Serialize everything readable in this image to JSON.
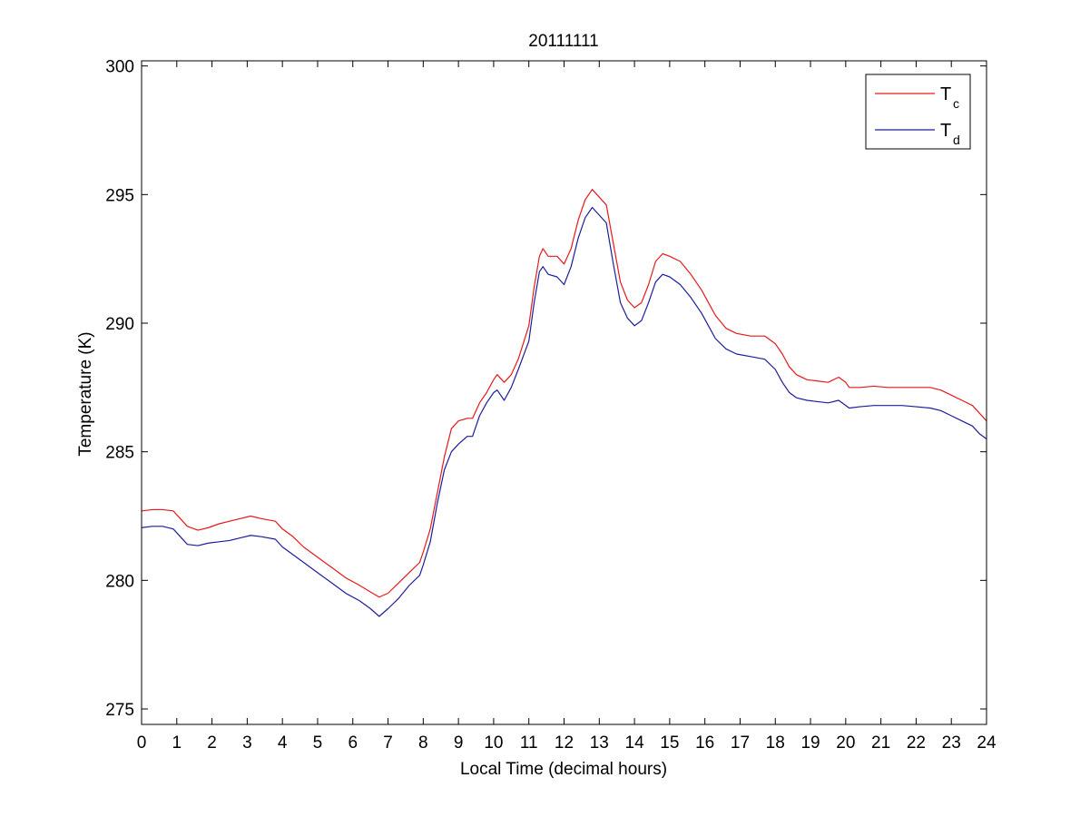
{
  "chart_data": {
    "type": "line",
    "title": "20111111",
    "xlabel": "Local Time (decimal hours)",
    "ylabel": "Temperature (K)",
    "xlim": [
      0,
      24
    ],
    "ylim": [
      274.4,
      300.2
    ],
    "xticks": [
      0,
      1,
      2,
      3,
      4,
      5,
      6,
      7,
      8,
      9,
      10,
      11,
      12,
      13,
      14,
      15,
      16,
      17,
      18,
      19,
      20,
      21,
      22,
      23,
      24
    ],
    "yticks": [
      275,
      280,
      285,
      290,
      295,
      300
    ],
    "grid": false,
    "legend_position": "top-right",
    "series": [
      {
        "name": "T",
        "subscript": "c",
        "color": "#e41a1c",
        "points": [
          [
            0.0,
            282.7
          ],
          [
            0.3,
            282.75
          ],
          [
            0.6,
            282.75
          ],
          [
            0.9,
            282.7
          ],
          [
            1.1,
            282.4
          ],
          [
            1.3,
            282.1
          ],
          [
            1.6,
            281.95
          ],
          [
            1.9,
            282.05
          ],
          [
            2.2,
            282.2
          ],
          [
            2.5,
            282.3
          ],
          [
            2.8,
            282.4
          ],
          [
            3.1,
            282.5
          ],
          [
            3.4,
            282.4
          ],
          [
            3.8,
            282.3
          ],
          [
            4.0,
            282.0
          ],
          [
            4.3,
            281.7
          ],
          [
            4.6,
            281.3
          ],
          [
            5.0,
            280.9
          ],
          [
            5.4,
            280.5
          ],
          [
            5.8,
            280.1
          ],
          [
            6.2,
            279.8
          ],
          [
            6.5,
            279.55
          ],
          [
            6.75,
            279.35
          ],
          [
            7.0,
            279.5
          ],
          [
            7.3,
            279.9
          ],
          [
            7.6,
            280.3
          ],
          [
            7.9,
            280.7
          ],
          [
            8.0,
            281.1
          ],
          [
            8.2,
            282.0
          ],
          [
            8.4,
            283.4
          ],
          [
            8.6,
            284.8
          ],
          [
            8.8,
            285.9
          ],
          [
            9.0,
            286.2
          ],
          [
            9.25,
            286.3
          ],
          [
            9.4,
            286.3
          ],
          [
            9.6,
            286.9
          ],
          [
            9.8,
            287.3
          ],
          [
            10.0,
            287.8
          ],
          [
            10.1,
            288.0
          ],
          [
            10.3,
            287.7
          ],
          [
            10.5,
            288.0
          ],
          [
            10.7,
            288.6
          ],
          [
            11.0,
            289.9
          ],
          [
            11.15,
            291.4
          ],
          [
            11.3,
            292.6
          ],
          [
            11.4,
            292.9
          ],
          [
            11.55,
            292.6
          ],
          [
            11.8,
            292.6
          ],
          [
            12.0,
            292.3
          ],
          [
            12.2,
            292.9
          ],
          [
            12.4,
            294.0
          ],
          [
            12.6,
            294.8
          ],
          [
            12.8,
            295.2
          ],
          [
            13.0,
            294.9
          ],
          [
            13.2,
            294.6
          ],
          [
            13.4,
            293.1
          ],
          [
            13.6,
            291.6
          ],
          [
            13.8,
            290.9
          ],
          [
            14.0,
            290.6
          ],
          [
            14.2,
            290.8
          ],
          [
            14.4,
            291.5
          ],
          [
            14.6,
            292.4
          ],
          [
            14.8,
            292.7
          ],
          [
            15.0,
            292.6
          ],
          [
            15.3,
            292.4
          ],
          [
            15.6,
            291.9
          ],
          [
            15.9,
            291.3
          ],
          [
            16.1,
            290.8
          ],
          [
            16.3,
            290.3
          ],
          [
            16.6,
            289.8
          ],
          [
            16.9,
            289.6
          ],
          [
            17.3,
            289.5
          ],
          [
            17.7,
            289.5
          ],
          [
            18.0,
            289.2
          ],
          [
            18.2,
            288.8
          ],
          [
            18.4,
            288.3
          ],
          [
            18.6,
            288.0
          ],
          [
            18.9,
            287.8
          ],
          [
            19.2,
            287.75
          ],
          [
            19.5,
            287.7
          ],
          [
            19.8,
            287.9
          ],
          [
            20.0,
            287.7
          ],
          [
            20.1,
            287.5
          ],
          [
            20.4,
            287.5
          ],
          [
            20.8,
            287.55
          ],
          [
            21.2,
            287.5
          ],
          [
            21.6,
            287.5
          ],
          [
            22.0,
            287.5
          ],
          [
            22.4,
            287.5
          ],
          [
            22.7,
            287.4
          ],
          [
            23.0,
            287.2
          ],
          [
            23.3,
            287.0
          ],
          [
            23.6,
            286.8
          ],
          [
            23.8,
            286.5
          ],
          [
            24.0,
            286.2
          ]
        ]
      },
      {
        "name": "T",
        "subscript": "d",
        "color": "#1d1d9a",
        "points": [
          [
            0.0,
            282.05
          ],
          [
            0.3,
            282.1
          ],
          [
            0.6,
            282.1
          ],
          [
            0.9,
            282.0
          ],
          [
            1.1,
            281.7
          ],
          [
            1.3,
            281.4
          ],
          [
            1.6,
            281.35
          ],
          [
            1.9,
            281.45
          ],
          [
            2.2,
            281.5
          ],
          [
            2.5,
            281.55
          ],
          [
            2.8,
            281.65
          ],
          [
            3.1,
            281.75
          ],
          [
            3.4,
            281.7
          ],
          [
            3.8,
            281.6
          ],
          [
            4.0,
            281.3
          ],
          [
            4.3,
            281.0
          ],
          [
            4.6,
            280.7
          ],
          [
            5.0,
            280.3
          ],
          [
            5.4,
            279.9
          ],
          [
            5.8,
            279.5
          ],
          [
            6.2,
            279.2
          ],
          [
            6.5,
            278.9
          ],
          [
            6.75,
            278.6
          ],
          [
            7.0,
            278.9
          ],
          [
            7.3,
            279.3
          ],
          [
            7.6,
            279.8
          ],
          [
            7.9,
            280.2
          ],
          [
            8.0,
            280.6
          ],
          [
            8.2,
            281.5
          ],
          [
            8.4,
            283.0
          ],
          [
            8.6,
            284.3
          ],
          [
            8.8,
            285.0
          ],
          [
            9.0,
            285.3
          ],
          [
            9.25,
            285.6
          ],
          [
            9.4,
            285.6
          ],
          [
            9.6,
            286.4
          ],
          [
            9.8,
            286.9
          ],
          [
            10.0,
            287.3
          ],
          [
            10.1,
            287.4
          ],
          [
            10.3,
            287.0
          ],
          [
            10.5,
            287.5
          ],
          [
            10.7,
            288.2
          ],
          [
            11.0,
            289.3
          ],
          [
            11.15,
            290.8
          ],
          [
            11.3,
            292.0
          ],
          [
            11.4,
            292.2
          ],
          [
            11.55,
            291.9
          ],
          [
            11.8,
            291.8
          ],
          [
            12.0,
            291.5
          ],
          [
            12.2,
            292.2
          ],
          [
            12.4,
            293.3
          ],
          [
            12.6,
            294.1
          ],
          [
            12.8,
            294.5
          ],
          [
            13.0,
            294.2
          ],
          [
            13.2,
            293.9
          ],
          [
            13.4,
            292.3
          ],
          [
            13.6,
            290.8
          ],
          [
            13.8,
            290.2
          ],
          [
            14.0,
            289.9
          ],
          [
            14.2,
            290.1
          ],
          [
            14.4,
            290.8
          ],
          [
            14.6,
            291.6
          ],
          [
            14.8,
            291.9
          ],
          [
            15.0,
            291.8
          ],
          [
            15.3,
            291.5
          ],
          [
            15.6,
            291.0
          ],
          [
            15.9,
            290.4
          ],
          [
            16.1,
            289.9
          ],
          [
            16.3,
            289.4
          ],
          [
            16.6,
            289.0
          ],
          [
            16.9,
            288.8
          ],
          [
            17.3,
            288.7
          ],
          [
            17.7,
            288.6
          ],
          [
            18.0,
            288.2
          ],
          [
            18.2,
            287.7
          ],
          [
            18.4,
            287.3
          ],
          [
            18.6,
            287.1
          ],
          [
            18.9,
            287.0
          ],
          [
            19.2,
            286.95
          ],
          [
            19.5,
            286.9
          ],
          [
            19.8,
            287.0
          ],
          [
            20.0,
            286.8
          ],
          [
            20.1,
            286.7
          ],
          [
            20.4,
            286.75
          ],
          [
            20.8,
            286.8
          ],
          [
            21.2,
            286.8
          ],
          [
            21.6,
            286.8
          ],
          [
            22.0,
            286.75
          ],
          [
            22.4,
            286.7
          ],
          [
            22.7,
            286.6
          ],
          [
            23.0,
            286.4
          ],
          [
            23.3,
            286.2
          ],
          [
            23.6,
            286.0
          ],
          [
            23.8,
            285.7
          ],
          [
            24.0,
            285.5
          ]
        ]
      }
    ]
  }
}
